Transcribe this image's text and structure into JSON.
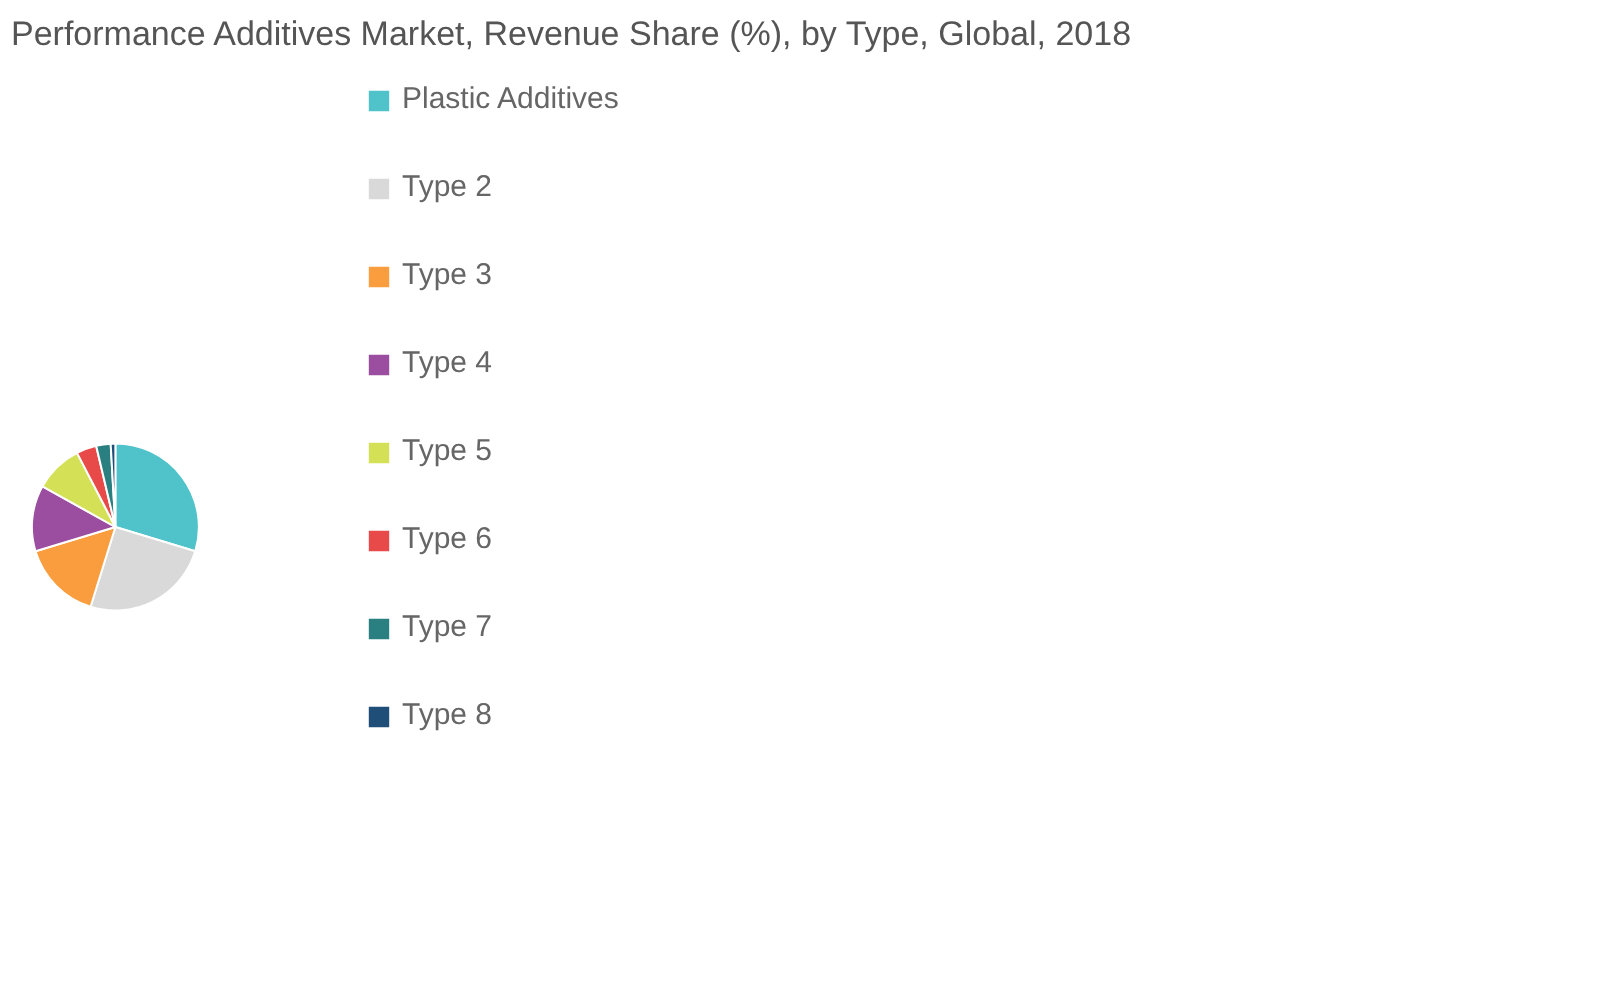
{
  "chart_data": {
    "type": "pie",
    "title": "Performance Additives Market, Revenue Share (%), by Type, Global, 2018",
    "categories": [
      "Plastic Additives",
      "Type 2",
      "Type 3",
      "Type 4",
      "Type 5",
      "Type 6",
      "Type 7",
      "Type 8"
    ],
    "values": [
      29.7,
      25.1,
      15.5,
      12.8,
      9.3,
      3.9,
      2.8,
      0.9
    ],
    "colors": [
      "#4fc3c9",
      "#d9d9d9",
      "#f99d3e",
      "#9b4ea0",
      "#d4e157",
      "#e84a4a",
      "#2a8080",
      "#1f4e79"
    ],
    "legend": "right"
  }
}
